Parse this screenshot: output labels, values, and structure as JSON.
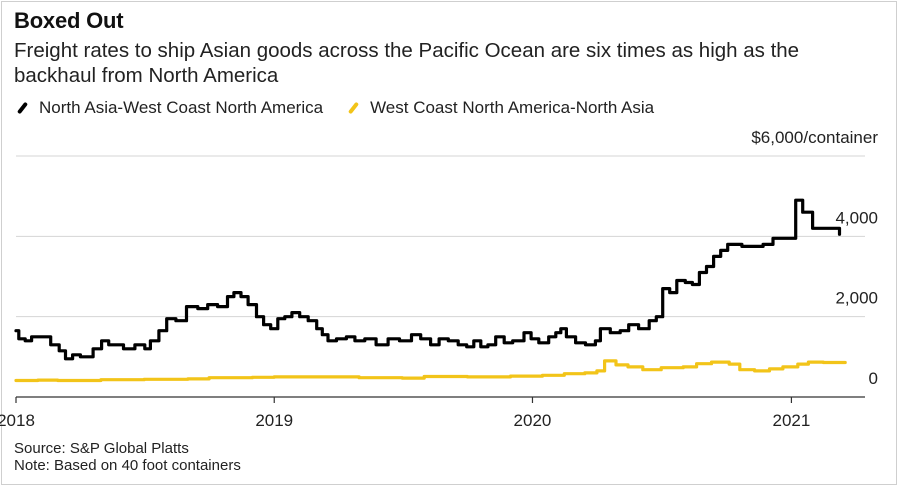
{
  "header": {
    "title": "Boxed Out",
    "subtitle": "Freight rates to ship Asian goods across the Pacific Ocean are six times as high as the backhaul from North America"
  },
  "footer": {
    "source": "Source: S&P Global Platts",
    "note": "Note: Based on 40 foot containers"
  },
  "chart_data": {
    "type": "line",
    "title": "Boxed Out",
    "unit_label": "$6,000/container",
    "x_domain": [
      "2018-01-01",
      "2021-04-15"
    ],
    "xticks": [
      {
        "date": "2018-01-01",
        "label": "2018"
      },
      {
        "date": "2019-01-01",
        "label": "2019"
      },
      {
        "date": "2020-01-01",
        "label": "2020"
      },
      {
        "date": "2021-01-01",
        "label": "2021"
      }
    ],
    "ylim": [
      0,
      6000
    ],
    "yticks": [
      {
        "value": 0,
        "label": "0"
      },
      {
        "value": 2000,
        "label": "2,000"
      },
      {
        "value": 4000,
        "label": "4,000"
      }
    ],
    "grid": true,
    "legend_position": "top-left",
    "step": true,
    "series": [
      {
        "name": "North Asia-West Coast North America",
        "color": "#000000",
        "points": [
          [
            "2018-01-01",
            1650
          ],
          [
            "2018-01-05",
            1450
          ],
          [
            "2018-01-14",
            1400
          ],
          [
            "2018-01-23",
            1500
          ],
          [
            "2018-02-19",
            1300
          ],
          [
            "2018-03-03",
            1150
          ],
          [
            "2018-03-12",
            950
          ],
          [
            "2018-03-22",
            1050
          ],
          [
            "2018-04-02",
            1000
          ],
          [
            "2018-04-20",
            1200
          ],
          [
            "2018-05-02",
            1400
          ],
          [
            "2018-05-12",
            1300
          ],
          [
            "2018-06-02",
            1200
          ],
          [
            "2018-06-18",
            1300
          ],
          [
            "2018-07-02",
            1200
          ],
          [
            "2018-07-10",
            1400
          ],
          [
            "2018-07-22",
            1650
          ],
          [
            "2018-08-02",
            1950
          ],
          [
            "2018-08-15",
            1900
          ],
          [
            "2018-08-30",
            2250
          ],
          [
            "2018-09-15",
            2200
          ],
          [
            "2018-09-29",
            2300
          ],
          [
            "2018-10-13",
            2250
          ],
          [
            "2018-10-27",
            2500
          ],
          [
            "2018-11-05",
            2600
          ],
          [
            "2018-11-15",
            2500
          ],
          [
            "2018-11-25",
            2300
          ],
          [
            "2018-12-07",
            2000
          ],
          [
            "2018-12-17",
            1800
          ],
          [
            "2018-12-27",
            1700
          ],
          [
            "2019-01-06",
            1950
          ],
          [
            "2019-01-16",
            2000
          ],
          [
            "2019-01-26",
            2100
          ],
          [
            "2019-02-06",
            2000
          ],
          [
            "2019-02-18",
            1900
          ],
          [
            "2019-03-02",
            1700
          ],
          [
            "2019-03-10",
            1550
          ],
          [
            "2019-03-18",
            1400
          ],
          [
            "2019-03-30",
            1450
          ],
          [
            "2019-04-13",
            1500
          ],
          [
            "2019-04-25",
            1400
          ],
          [
            "2019-05-09",
            1450
          ],
          [
            "2019-05-25",
            1300
          ],
          [
            "2019-06-11",
            1450
          ],
          [
            "2019-06-27",
            1400
          ],
          [
            "2019-07-14",
            1550
          ],
          [
            "2019-07-27",
            1450
          ],
          [
            "2019-08-10",
            1300
          ],
          [
            "2019-08-22",
            1450
          ],
          [
            "2019-09-04",
            1400
          ],
          [
            "2019-09-18",
            1300
          ],
          [
            "2019-09-30",
            1250
          ],
          [
            "2019-10-10",
            1400
          ],
          [
            "2019-10-20",
            1250
          ],
          [
            "2019-10-30",
            1300
          ],
          [
            "2019-11-10",
            1500
          ],
          [
            "2019-11-22",
            1350
          ],
          [
            "2019-12-04",
            1400
          ],
          [
            "2019-12-20",
            1600
          ],
          [
            "2019-12-30",
            1450
          ],
          [
            "2020-01-10",
            1350
          ],
          [
            "2020-01-24",
            1500
          ],
          [
            "2020-02-03",
            1600
          ],
          [
            "2020-02-10",
            1700
          ],
          [
            "2020-02-18",
            1500
          ],
          [
            "2020-03-02",
            1350
          ],
          [
            "2020-03-16",
            1300
          ],
          [
            "2020-03-30",
            1400
          ],
          [
            "2020-04-06",
            1700
          ],
          [
            "2020-04-20",
            1600
          ],
          [
            "2020-05-04",
            1650
          ],
          [
            "2020-05-16",
            1800
          ],
          [
            "2020-05-30",
            1700
          ],
          [
            "2020-06-14",
            1900
          ],
          [
            "2020-06-24",
            2000
          ],
          [
            "2020-07-03",
            2700
          ],
          [
            "2020-07-13",
            2600
          ],
          [
            "2020-07-23",
            2900
          ],
          [
            "2020-08-04",
            2850
          ],
          [
            "2020-08-14",
            2800
          ],
          [
            "2020-08-24",
            3100
          ],
          [
            "2020-09-03",
            3250
          ],
          [
            "2020-09-13",
            3500
          ],
          [
            "2020-09-23",
            3650
          ],
          [
            "2020-10-03",
            3800
          ],
          [
            "2020-10-23",
            3750
          ],
          [
            "2020-11-22",
            3800
          ],
          [
            "2020-12-06",
            3950
          ],
          [
            "2021-01-03",
            3950
          ],
          [
            "2021-01-07",
            4900
          ],
          [
            "2021-01-17",
            4600
          ],
          [
            "2021-01-31",
            4200
          ],
          [
            "2021-02-28",
            4200
          ],
          [
            "2021-03-10",
            4050
          ]
        ]
      },
      {
        "name": "West Coast North America-North Asia",
        "color": "#f2c419",
        "points": [
          [
            "2018-01-01",
            410
          ],
          [
            "2018-02-01",
            420
          ],
          [
            "2018-03-01",
            410
          ],
          [
            "2018-05-01",
            430
          ],
          [
            "2018-07-01",
            440
          ],
          [
            "2018-09-01",
            450
          ],
          [
            "2018-10-01",
            480
          ],
          [
            "2018-12-01",
            490
          ],
          [
            "2019-01-01",
            500
          ],
          [
            "2019-03-01",
            500
          ],
          [
            "2019-05-01",
            480
          ],
          [
            "2019-07-01",
            470
          ],
          [
            "2019-08-01",
            510
          ],
          [
            "2019-10-01",
            500
          ],
          [
            "2019-12-01",
            520
          ],
          [
            "2020-01-15",
            540
          ],
          [
            "2020-02-15",
            580
          ],
          [
            "2020-03-15",
            600
          ],
          [
            "2020-04-01",
            650
          ],
          [
            "2020-04-12",
            900
          ],
          [
            "2020-04-28",
            800
          ],
          [
            "2020-05-15",
            750
          ],
          [
            "2020-06-05",
            680
          ],
          [
            "2020-07-01",
            730
          ],
          [
            "2020-08-01",
            750
          ],
          [
            "2020-08-20",
            830
          ],
          [
            "2020-09-10",
            870
          ],
          [
            "2020-10-05",
            820
          ],
          [
            "2020-10-20",
            680
          ],
          [
            "2020-11-10",
            650
          ],
          [
            "2020-12-01",
            700
          ],
          [
            "2020-12-20",
            750
          ],
          [
            "2021-01-10",
            820
          ],
          [
            "2021-01-25",
            870
          ],
          [
            "2021-02-15",
            860
          ],
          [
            "2021-03-18",
            860
          ]
        ]
      }
    ]
  }
}
